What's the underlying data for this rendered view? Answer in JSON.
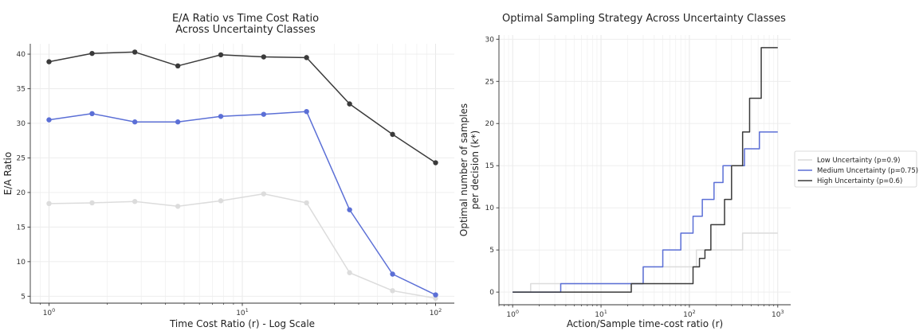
{
  "chart_data": [
    {
      "type": "line",
      "title_lines": [
        "E/A Ratio vs Time Cost Ratio",
        "Across Uncertainty Classes"
      ],
      "xlabel": "Time Cost Ratio (r) - Log Scale",
      "ylabel": "E/A Ratio",
      "xscale": "log",
      "xlim": [
        0.8,
        125
      ],
      "ylim": [
        4,
        41.5
      ],
      "xticks": [
        {
          "value": 1,
          "base": "10",
          "exp": "0"
        },
        {
          "value": 10,
          "base": "10",
          "exp": "1"
        },
        {
          "value": 100,
          "base": "10",
          "exp": "2"
        }
      ],
      "yticks": [
        5,
        10,
        15,
        20,
        25,
        30,
        35,
        40
      ],
      "grid": true,
      "x": [
        1,
        1.67,
        2.78,
        4.64,
        7.74,
        12.9,
        21.5,
        35.9,
        59.9,
        100
      ],
      "series": [
        {
          "key": "low",
          "color": "#dcdcdc",
          "values": [
            18.4,
            18.5,
            18.7,
            18.0,
            18.8,
            19.8,
            18.5,
            8.4,
            5.8,
            4.7
          ]
        },
        {
          "key": "medium",
          "color": "#5b6fd6",
          "values": [
            30.5,
            31.4,
            30.2,
            30.2,
            31.0,
            31.3,
            31.7,
            17.5,
            8.2,
            5.2
          ]
        },
        {
          "key": "high",
          "color": "#3a3a3a",
          "values": [
            38.9,
            40.1,
            40.3,
            38.3,
            39.9,
            39.6,
            39.5,
            32.8,
            28.4,
            24.3
          ]
        }
      ]
    },
    {
      "type": "line",
      "step": true,
      "title": "Optimal Sampling Strategy Across Uncertainty Classes",
      "xlabel": "Action/Sample time-cost ratio (r)",
      "ylabel_lines": [
        "Optimal number of samples",
        "per decision (k*)"
      ],
      "xscale": "log",
      "xlim": [
        0.7,
        1400
      ],
      "ylim": [
        -1.5,
        30.5
      ],
      "xticks": [
        {
          "value": 1,
          "base": "10",
          "exp": "0"
        },
        {
          "value": 10,
          "base": "10",
          "exp": "1"
        },
        {
          "value": 100,
          "base": "10",
          "exp": "2"
        },
        {
          "value": 1000,
          "base": "10",
          "exp": "3"
        }
      ],
      "yticks": [
        0,
        5,
        10,
        15,
        20,
        25,
        30
      ],
      "grid": true,
      "legend_position": "outside-right",
      "series": [
        {
          "name": "Low Uncertainty (p=0.9)",
          "color": "#dcdcdc",
          "x": [
            1,
            1.6,
            1.6,
            30,
            30,
            120,
            120,
            400,
            400,
            1000
          ],
          "y": [
            0,
            0,
            1,
            1,
            3,
            3,
            5,
            5,
            7,
            7
          ]
        },
        {
          "name": "Medium Uncertainty (p=0.75)",
          "color": "#5b6fd6",
          "x": [
            1,
            3.5,
            3.5,
            30,
            30,
            50,
            50,
            80,
            80,
            110,
            110,
            140,
            140,
            190,
            190,
            240,
            240,
            340,
            340,
            420,
            420,
            620,
            620,
            800,
            800,
            1000
          ],
          "y": [
            0,
            0,
            1,
            1,
            3,
            3,
            5,
            5,
            7,
            7,
            9,
            9,
            11,
            11,
            13,
            13,
            15,
            15,
            15,
            15,
            17,
            17,
            19,
            19,
            19,
            19
          ]
        },
        {
          "name": "High Uncertainty (p=0.6)",
          "color": "#3a3a3a",
          "x": [
            1,
            22,
            22,
            110,
            110,
            130,
            130,
            150,
            150,
            175,
            175,
            250,
            250,
            300,
            300,
            400,
            400,
            480,
            480,
            650,
            650,
            1000
          ],
          "y": [
            0,
            0,
            1,
            1,
            3,
            3,
            4,
            4,
            5,
            5,
            8,
            8,
            11,
            11,
            15,
            15,
            19,
            19,
            23,
            23,
            29,
            29
          ]
        }
      ]
    }
  ]
}
